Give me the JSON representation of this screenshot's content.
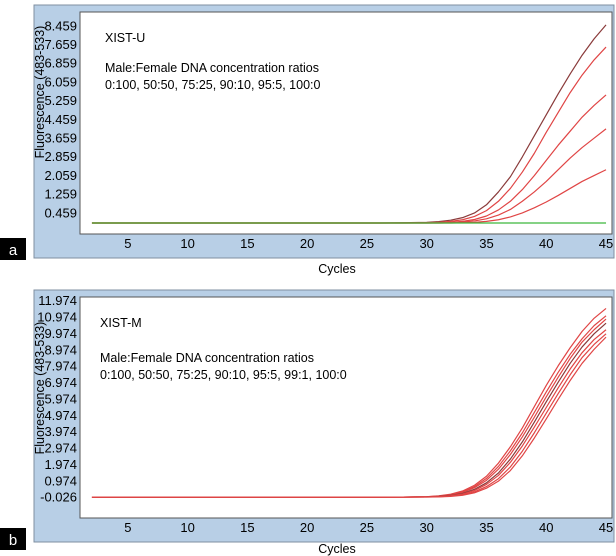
{
  "chart_data": [
    {
      "type": "line",
      "panel_label": "a",
      "title": "XIST-U",
      "subtitle": "Male:Female DNA concentration ratios",
      "subtitle2": "0:100, 50:50, 75:25, 90:10, 95:5, 100:0",
      "xlabel": "Cycles",
      "ylabel": "Fluorescence (483-533)",
      "xlim": [
        1,
        45.5
      ],
      "ylim": [
        -0.45,
        9.05
      ],
      "xticks": [
        "5",
        "10",
        "15",
        "20",
        "25",
        "30",
        "35",
        "40",
        "45"
      ],
      "yticks": [
        "0.459",
        "1.259",
        "2.059",
        "2.859",
        "3.659",
        "4.459",
        "5.259",
        "6.059",
        "6.859",
        "7.659",
        "8.459"
      ],
      "colors": {
        "plot_bg": "#ffffff",
        "frame_bg": "#b8cfe6",
        "curve": "#e04545",
        "dark_curve": "#8a3a3a",
        "flat_curve": "#3cb83c"
      },
      "x": [
        2,
        4,
        6,
        8,
        10,
        12,
        14,
        16,
        18,
        20,
        22,
        24,
        26,
        28,
        30,
        31,
        32,
        33,
        34,
        35,
        36,
        37,
        38,
        39,
        40,
        41,
        42,
        43,
        44,
        45
      ],
      "series": [
        {
          "color": "dark",
          "values": [
            0.02,
            0.02,
            0.02,
            0.02,
            0.02,
            0.02,
            0.02,
            0.02,
            0.02,
            0.02,
            0.02,
            0.02,
            0.02,
            0.03,
            0.05,
            0.08,
            0.14,
            0.25,
            0.45,
            0.8,
            1.35,
            2.0,
            2.85,
            3.75,
            4.65,
            5.55,
            6.4,
            7.2,
            7.9,
            8.5
          ]
        },
        {
          "color": "red",
          "values": [
            0.02,
            0.02,
            0.02,
            0.02,
            0.02,
            0.02,
            0.02,
            0.02,
            0.02,
            0.02,
            0.02,
            0.02,
            0.02,
            0.02,
            0.03,
            0.05,
            0.09,
            0.16,
            0.3,
            0.55,
            0.95,
            1.5,
            2.2,
            3.0,
            3.9,
            4.75,
            5.6,
            6.35,
            7.0,
            7.55
          ]
        },
        {
          "color": "red",
          "values": [
            0.02,
            0.02,
            0.02,
            0.02,
            0.02,
            0.02,
            0.02,
            0.02,
            0.02,
            0.02,
            0.02,
            0.02,
            0.02,
            0.02,
            0.02,
            0.03,
            0.05,
            0.09,
            0.17,
            0.32,
            0.58,
            0.95,
            1.45,
            2.05,
            2.7,
            3.35,
            3.95,
            4.55,
            5.05,
            5.5
          ]
        },
        {
          "color": "red",
          "values": [
            0.02,
            0.02,
            0.02,
            0.02,
            0.02,
            0.02,
            0.02,
            0.02,
            0.02,
            0.02,
            0.02,
            0.02,
            0.02,
            0.02,
            0.02,
            0.02,
            0.03,
            0.06,
            0.11,
            0.2,
            0.36,
            0.6,
            0.95,
            1.35,
            1.8,
            2.3,
            2.8,
            3.25,
            3.65,
            4.05
          ]
        },
        {
          "color": "red",
          "values": [
            0.02,
            0.02,
            0.02,
            0.02,
            0.02,
            0.02,
            0.02,
            0.02,
            0.02,
            0.02,
            0.02,
            0.02,
            0.02,
            0.02,
            0.02,
            0.02,
            0.02,
            0.03,
            0.05,
            0.09,
            0.16,
            0.28,
            0.45,
            0.67,
            0.92,
            1.2,
            1.5,
            1.8,
            2.05,
            2.3
          ]
        },
        {
          "color": "flat",
          "values": [
            0.02,
            0.02,
            0.02,
            0.02,
            0.02,
            0.02,
            0.02,
            0.02,
            0.02,
            0.02,
            0.02,
            0.02,
            0.02,
            0.02,
            0.02,
            0.02,
            0.02,
            0.02,
            0.02,
            0.02,
            0.02,
            0.02,
            0.02,
            0.02,
            0.02,
            0.02,
            0.02,
            0.02,
            0.02,
            0.02
          ]
        }
      ]
    },
    {
      "type": "line",
      "panel_label": "b",
      "title": "XIST-M",
      "subtitle": "Male:Female DNA concentration ratios",
      "subtitle2": "0:100, 50:50, 75:25, 90:10, 95:5, 99:1, 100:0",
      "xlabel": "Cycles",
      "ylabel": "Fluorescence (483-533)",
      "xlim": [
        1,
        45.5
      ],
      "ylim": [
        -1.3,
        12.2
      ],
      "xticks": [
        "5",
        "10",
        "15",
        "20",
        "25",
        "30",
        "35",
        "40",
        "45"
      ],
      "yticks": [
        "-0.026",
        "0.974",
        "1.974",
        "2.974",
        "3.974",
        "4.974",
        "5.974",
        "6.974",
        "7.974",
        "8.974",
        "9.974",
        "10.974",
        "11.974"
      ],
      "colors": {
        "plot_bg": "#ffffff",
        "frame_bg": "#b8cfe6",
        "curve": "#e04545",
        "dark_curve": "#8a3a3a",
        "flat_curve": "#3cb83c"
      },
      "x": [
        2,
        4,
        6,
        8,
        10,
        12,
        14,
        16,
        18,
        20,
        22,
        24,
        26,
        28,
        30,
        31,
        32,
        33,
        34,
        35,
        36,
        37,
        38,
        39,
        40,
        41,
        42,
        43,
        44,
        45
      ],
      "series": [
        {
          "color": "red",
          "values": [
            -0.03,
            -0.03,
            -0.03,
            -0.03,
            -0.03,
            -0.03,
            -0.03,
            -0.03,
            -0.03,
            -0.03,
            -0.03,
            -0.03,
            -0.03,
            -0.02,
            0.0,
            0.05,
            0.15,
            0.35,
            0.7,
            1.25,
            2.05,
            3.05,
            4.2,
            5.5,
            6.8,
            8.0,
            9.1,
            10.1,
            10.9,
            11.5
          ]
        },
        {
          "color": "red",
          "values": [
            -0.03,
            -0.03,
            -0.03,
            -0.03,
            -0.03,
            -0.03,
            -0.03,
            -0.03,
            -0.03,
            -0.03,
            -0.03,
            -0.03,
            -0.03,
            -0.02,
            0.0,
            0.04,
            0.12,
            0.3,
            0.62,
            1.12,
            1.85,
            2.8,
            3.9,
            5.15,
            6.4,
            7.6,
            8.7,
            9.65,
            10.45,
            11.05
          ]
        },
        {
          "color": "red",
          "values": [
            -0.03,
            -0.03,
            -0.03,
            -0.03,
            -0.03,
            -0.03,
            -0.03,
            -0.03,
            -0.03,
            -0.03,
            -0.03,
            -0.03,
            -0.03,
            -0.02,
            -0.01,
            0.03,
            0.1,
            0.26,
            0.55,
            1.0,
            1.68,
            2.58,
            3.65,
            4.85,
            6.1,
            7.3,
            8.45,
            9.45,
            10.2,
            10.85
          ]
        },
        {
          "color": "dark",
          "values": [
            -0.03,
            -0.03,
            -0.03,
            -0.03,
            -0.03,
            -0.03,
            -0.03,
            -0.03,
            -0.03,
            -0.03,
            -0.03,
            -0.03,
            -0.03,
            -0.02,
            -0.01,
            0.02,
            0.08,
            0.2,
            0.45,
            0.85,
            1.45,
            2.3,
            3.35,
            4.55,
            5.8,
            7.0,
            8.15,
            9.15,
            9.95,
            10.6
          ]
        },
        {
          "color": "red",
          "values": [
            -0.03,
            -0.03,
            -0.03,
            -0.03,
            -0.03,
            -0.03,
            -0.03,
            -0.03,
            -0.03,
            -0.03,
            -0.03,
            -0.03,
            -0.03,
            -0.02,
            -0.01,
            0.01,
            0.06,
            0.16,
            0.38,
            0.75,
            1.3,
            2.1,
            3.1,
            4.25,
            5.45,
            6.65,
            7.8,
            8.8,
            9.6,
            10.2
          ]
        },
        {
          "color": "red",
          "values": [
            -0.03,
            -0.03,
            -0.03,
            -0.03,
            -0.03,
            -0.03,
            -0.03,
            -0.03,
            -0.03,
            -0.03,
            -0.03,
            -0.03,
            -0.03,
            -0.03,
            -0.02,
            0.0,
            0.04,
            0.12,
            0.3,
            0.62,
            1.1,
            1.82,
            2.78,
            3.9,
            5.1,
            6.3,
            7.45,
            8.5,
            9.3,
            9.95
          ]
        },
        {
          "color": "red",
          "values": [
            -0.03,
            -0.03,
            -0.03,
            -0.03,
            -0.03,
            -0.03,
            -0.03,
            -0.03,
            -0.03,
            -0.03,
            -0.03,
            -0.03,
            -0.03,
            -0.03,
            -0.02,
            -0.01,
            0.02,
            0.09,
            0.24,
            0.52,
            0.95,
            1.6,
            2.5,
            3.58,
            4.75,
            5.95,
            7.1,
            8.15,
            9.0,
            9.75
          ]
        }
      ]
    }
  ]
}
